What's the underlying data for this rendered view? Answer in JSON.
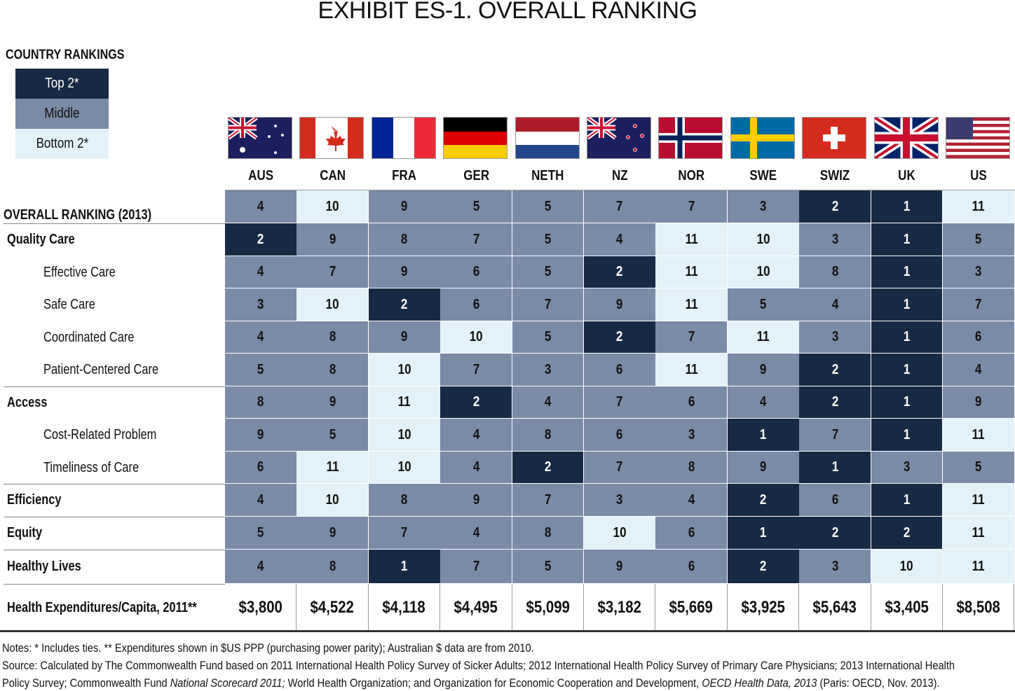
{
  "title": "EXHIBIT ES-1. OVERALL RANKING",
  "legend": {
    "title": "COUNTRY RANKINGS",
    "items": [
      {
        "label": "Top 2*",
        "color": "#172a45"
      },
      {
        "label": "Middle",
        "color": "#7a8ba8"
      },
      {
        "label": "Bottom 2*",
        "color": "#e2f2f8"
      }
    ]
  },
  "chart_data": {
    "type": "table",
    "columns": [
      "AUS",
      "CAN",
      "FRA",
      "GER",
      "NETH",
      "NZ",
      "NOR",
      "SWE",
      "SWIZ",
      "UK",
      "US"
    ],
    "rows": [
      {
        "label": "OVERALL RANKING (2013)",
        "style": "header",
        "values": [
          4,
          10,
          9,
          5,
          5,
          7,
          7,
          3,
          2,
          1,
          11
        ]
      },
      {
        "label": "Quality Care",
        "style": "bold",
        "values": [
          2,
          9,
          8,
          7,
          5,
          4,
          11,
          10,
          3,
          1,
          5
        ]
      },
      {
        "label": "Effective Care",
        "style": "indent",
        "values": [
          4,
          7,
          9,
          6,
          5,
          2,
          11,
          10,
          8,
          1,
          3
        ]
      },
      {
        "label": "Safe Care",
        "style": "indent",
        "values": [
          3,
          10,
          2,
          6,
          7,
          9,
          11,
          5,
          4,
          1,
          7
        ]
      },
      {
        "label": "Coordinated Care",
        "style": "indent",
        "values": [
          4,
          8,
          9,
          10,
          5,
          2,
          7,
          11,
          3,
          1,
          6
        ]
      },
      {
        "label": "Patient-Centered Care",
        "style": "indent",
        "values": [
          5,
          8,
          10,
          7,
          3,
          6,
          11,
          9,
          2,
          1,
          4
        ]
      },
      {
        "label": "Access",
        "style": "bold",
        "values": [
          8,
          9,
          11,
          2,
          4,
          7,
          6,
          4,
          2,
          1,
          9
        ]
      },
      {
        "label": "Cost-Related Problem",
        "style": "indent",
        "values": [
          9,
          5,
          10,
          4,
          8,
          6,
          3,
          1,
          7,
          1,
          11
        ]
      },
      {
        "label": "Timeliness of Care",
        "style": "indent",
        "values": [
          6,
          11,
          10,
          4,
          2,
          7,
          8,
          9,
          1,
          3,
          5
        ]
      },
      {
        "label": "Efficiency",
        "style": "bold",
        "values": [
          4,
          10,
          8,
          9,
          7,
          3,
          4,
          2,
          6,
          1,
          11
        ]
      },
      {
        "label": "Equity",
        "style": "bold",
        "values": [
          5,
          9,
          7,
          4,
          8,
          10,
          6,
          1,
          2,
          2,
          11
        ]
      },
      {
        "label": "Healthy Lives",
        "style": "bold",
        "values": [
          4,
          8,
          1,
          7,
          5,
          9,
          6,
          2,
          3,
          10,
          11
        ]
      }
    ],
    "expenditures": {
      "label": "Health Expenditures/Capita, 2011**",
      "values": [
        "$3,800",
        "$4,522",
        "$4,118",
        "$4,495",
        "$5,099",
        "$3,182",
        "$5,669",
        "$3,925",
        "$5,643",
        "$3,405",
        "$8,508"
      ]
    }
  },
  "notes": {
    "line1": "Notes: * Includes ties. ** Expenditures shown in $US PPP (purchasing power parity); Australian $ data are from 2010.",
    "line2": "Source: Calculated by The Commonwealth Fund based on 2011 International Health Policy Survey of Sicker Adults; 2012 International Health Policy Survey of Primary Care Physicians; 2013 International Health",
    "line3a": "Policy Survey; Commonwealth Fund ",
    "line3b": "National Scorecard 2011;",
    "line3c": " World Health Organization; and Organization for Economic Cooperation and Development, ",
    "line3d": "OECD Health Data, 2013",
    "line3e": " (Paris: OECD, Nov. 2013)."
  }
}
